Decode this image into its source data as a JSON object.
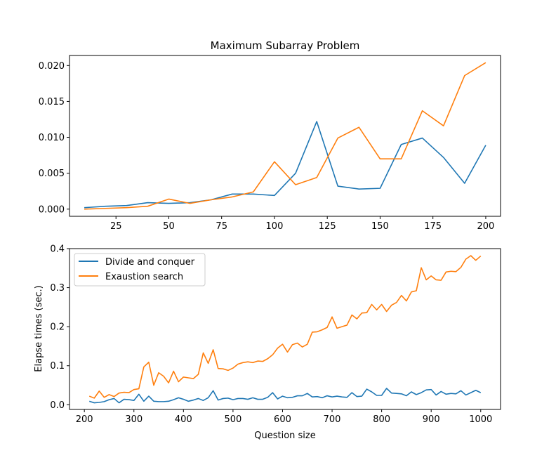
{
  "chart_data": [
    {
      "type": "line",
      "title": "Maximum Subarray Problem",
      "xlabel": "",
      "ylabel": "",
      "xlim": [
        3,
        207
      ],
      "ylim": [
        -0.001,
        0.0214
      ],
      "xticks": [
        25,
        50,
        75,
        100,
        125,
        150,
        175,
        200
      ],
      "xtick_labels": [
        "25",
        "50",
        "75",
        "100",
        "125",
        "150",
        "175",
        "200"
      ],
      "yticks": [
        0.0,
        0.005,
        0.01,
        0.015,
        0.02
      ],
      "ytick_labels": [
        "0.000",
        "0.005",
        "0.010",
        "0.015",
        "0.020"
      ],
      "grid": false,
      "legend": null,
      "x": [
        10,
        20,
        30,
        40,
        50,
        60,
        70,
        80,
        90,
        100,
        110,
        120,
        130,
        140,
        150,
        160,
        170,
        180,
        190,
        200
      ],
      "series": [
        {
          "color": "#1f77b4",
          "values": [
            0.0002,
            0.0004,
            0.0005,
            0.0009,
            0.0008,
            0.0009,
            0.0013,
            0.0021,
            0.0021,
            0.0019,
            0.005,
            0.0122,
            0.0032,
            0.0028,
            0.0029,
            0.009,
            0.0099,
            0.0072,
            0.0036,
            0.0089
          ]
        },
        {
          "color": "#ff7f0e",
          "values": [
            0.0,
            0.0001,
            0.0002,
            0.0004,
            0.0014,
            0.0008,
            0.0013,
            0.0017,
            0.0024,
            0.0066,
            0.0034,
            0.0044,
            0.0099,
            0.0114,
            0.007,
            0.007,
            0.0137,
            0.0116,
            0.0186,
            0.0204
          ]
        }
      ]
    },
    {
      "type": "line",
      "title": "",
      "xlabel": "Question size",
      "ylabel": "Elapse times (sec.)",
      "xlim": [
        170,
        1040
      ],
      "ylim": [
        -0.012,
        0.4
      ],
      "xticks": [
        200,
        300,
        400,
        500,
        600,
        700,
        800,
        900,
        1000
      ],
      "xtick_labels": [
        "200",
        "300",
        "400",
        "500",
        "600",
        "700",
        "800",
        "900",
        "1000"
      ],
      "yticks": [
        0.0,
        0.1,
        0.2,
        0.3,
        0.4
      ],
      "ytick_labels": [
        "0.0",
        "0.1",
        "0.2",
        "0.3",
        "0.4"
      ],
      "grid": false,
      "legend": "upper-left",
      "x": [
        210,
        220,
        230,
        240,
        250,
        260,
        270,
        280,
        290,
        300,
        310,
        320,
        330,
        340,
        350,
        360,
        370,
        380,
        390,
        400,
        410,
        420,
        430,
        440,
        450,
        460,
        470,
        480,
        490,
        500,
        510,
        520,
        530,
        540,
        550,
        560,
        570,
        580,
        590,
        600,
        610,
        620,
        630,
        640,
        650,
        660,
        670,
        680,
        690,
        700,
        710,
        720,
        730,
        740,
        750,
        760,
        770,
        780,
        790,
        800,
        810,
        820,
        830,
        840,
        850,
        860,
        870,
        880,
        890,
        900,
        910,
        920,
        930,
        940,
        950,
        960,
        970,
        980,
        990,
        1000
      ],
      "series": [
        {
          "name": "Divide and conquer",
          "color": "#1f77b4",
          "values": [
            0.009,
            0.005,
            0.006,
            0.008,
            0.013,
            0.016,
            0.005,
            0.014,
            0.013,
            0.011,
            0.027,
            0.009,
            0.022,
            0.009,
            0.008,
            0.008,
            0.009,
            0.013,
            0.018,
            0.014,
            0.009,
            0.012,
            0.016,
            0.011,
            0.018,
            0.036,
            0.012,
            0.016,
            0.017,
            0.013,
            0.016,
            0.016,
            0.014,
            0.018,
            0.014,
            0.014,
            0.019,
            0.031,
            0.015,
            0.022,
            0.018,
            0.019,
            0.023,
            0.023,
            0.029,
            0.02,
            0.021,
            0.018,
            0.023,
            0.02,
            0.022,
            0.02,
            0.019,
            0.031,
            0.021,
            0.022,
            0.04,
            0.033,
            0.024,
            0.024,
            0.042,
            0.03,
            0.029,
            0.028,
            0.023,
            0.033,
            0.026,
            0.031,
            0.038,
            0.039,
            0.025,
            0.034,
            0.027,
            0.029,
            0.028,
            0.036,
            0.025,
            0.031,
            0.037,
            0.031
          ]
        },
        {
          "name": "Exaustion search",
          "color": "#ff7f0e",
          "values": [
            0.022,
            0.017,
            0.035,
            0.019,
            0.026,
            0.021,
            0.03,
            0.032,
            0.031,
            0.039,
            0.041,
            0.097,
            0.109,
            0.05,
            0.082,
            0.073,
            0.056,
            0.086,
            0.059,
            0.071,
            0.069,
            0.067,
            0.078,
            0.133,
            0.106,
            0.141,
            0.093,
            0.092,
            0.088,
            0.094,
            0.104,
            0.108,
            0.11,
            0.108,
            0.112,
            0.111,
            0.118,
            0.128,
            0.145,
            0.155,
            0.135,
            0.154,
            0.158,
            0.148,
            0.155,
            0.186,
            0.187,
            0.192,
            0.198,
            0.225,
            0.196,
            0.2,
            0.204,
            0.23,
            0.22,
            0.235,
            0.236,
            0.257,
            0.243,
            0.257,
            0.239,
            0.255,
            0.262,
            0.28,
            0.266,
            0.289,
            0.292,
            0.351,
            0.32,
            0.33,
            0.32,
            0.319,
            0.34,
            0.342,
            0.341,
            0.352,
            0.373,
            0.382,
            0.37,
            0.381
          ]
        }
      ]
    }
  ]
}
